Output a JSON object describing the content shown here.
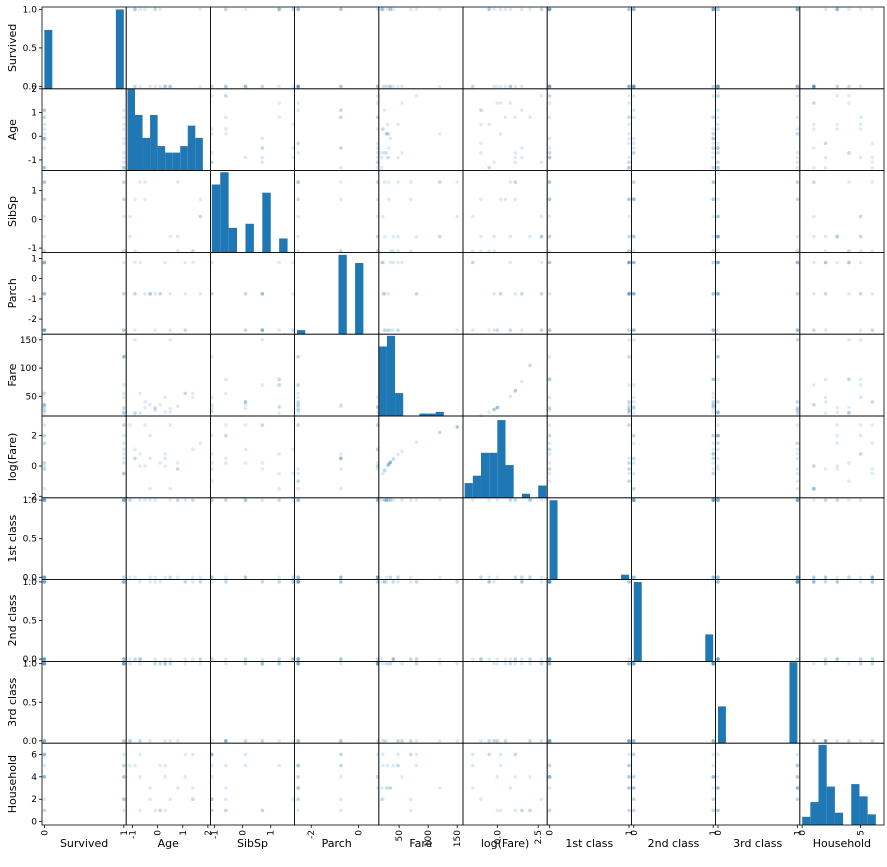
{
  "chart_data": {
    "type": "scatter",
    "variables": [
      "Survived",
      "Age",
      "SibSp",
      "Parch",
      "Fare",
      "log(Fare)",
      "1st class",
      "2nd class",
      "3rd class",
      "Household"
    ],
    "style": {
      "color": "#1f77b4",
      "point_alpha": 0.15,
      "bins": 10
    },
    "x_axis_ranges": [
      [
        -0.03,
        1.03
      ],
      [
        -1.25,
        2.1
      ],
      [
        -1.15,
        1.85
      ],
      [
        -2.7,
        0.85
      ],
      [
        15,
        160
      ],
      [
        -2.1,
        3.05
      ],
      [
        -0.03,
        1.03
      ],
      [
        -0.03,
        1.03
      ],
      [
        -0.03,
        1.03
      ],
      [
        -0.2,
        7.0
      ]
    ],
    "y_axis_ranges": [
      [
        -0.03,
        1.03
      ],
      [
        -1.45,
        2.0
      ],
      [
        -1.15,
        1.7
      ],
      [
        -2.75,
        1.3
      ],
      [
        15,
        160
      ],
      [
        -2.1,
        3.3
      ],
      [
        -0.03,
        1.03
      ],
      [
        -0.03,
        1.03
      ],
      [
        -0.03,
        1.03
      ],
      [
        -0.3,
        7.0
      ]
    ],
    "x_tick_labels": [
      [
        "0",
        "1"
      ],
      [
        "-1",
        "0",
        "1",
        "2"
      ],
      [
        "-1",
        "0",
        "1"
      ],
      [
        "-2",
        "0"
      ],
      [
        "50",
        "100",
        "150"
      ],
      [
        "0.0",
        "2.5"
      ],
      [
        "0",
        "1"
      ],
      [
        "0",
        "1"
      ],
      [
        "0",
        "1"
      ],
      [
        "0",
        "5"
      ]
    ],
    "y_tick_labels": [
      [
        "0.0",
        "0.5",
        "1.0"
      ],
      [
        "-1",
        "0",
        "1",
        "2"
      ],
      [
        "-1",
        "0",
        "1"
      ],
      [
        "-2",
        "-1",
        "0",
        "1"
      ],
      [
        "50",
        "100",
        "150"
      ],
      [
        "-2",
        "0",
        "2"
      ],
      [
        "0.0",
        "0.5",
        "1.0"
      ],
      [
        "0.0",
        "0.5",
        "1.0"
      ],
      [
        "0.0",
        "0.5",
        "1.0"
      ],
      [
        "0",
        "2",
        "4",
        "6"
      ]
    ],
    "histograms": [
      {
        "bin_edges": [
          0,
          0.1,
          0.2,
          0.3,
          0.4,
          0.5,
          0.6,
          0.7,
          0.8,
          0.9,
          1.0
        ],
        "counts": [
          0.72,
          0,
          0,
          0,
          0,
          0,
          0,
          0,
          0,
          0.97
        ]
      },
      {
        "bin_edges": [
          -1.2,
          -0.9,
          -0.6,
          -0.3,
          0.0,
          0.3,
          0.6,
          0.9,
          1.2,
          1.5,
          1.8
        ],
        "counts": [
          1.0,
          0.68,
          0.4,
          0.68,
          0.3,
          0.22,
          0.22,
          0.3,
          0.55,
          0.4
        ]
      },
      {
        "bin_edges": [
          -1.1,
          -0.8,
          -0.5,
          -0.2,
          0.1,
          0.4,
          0.7,
          1.0,
          1.3,
          1.6,
          1.9
        ],
        "counts": [
          0.83,
          0.98,
          0.3,
          0,
          0.35,
          0,
          0.73,
          0,
          0.17,
          0
        ]
      },
      {
        "bin_edges": [
          -2.6,
          -2.25,
          -1.9,
          -1.55,
          -1.2,
          -0.85,
          -0.5,
          -0.15,
          0.2,
          0.55,
          0.9
        ],
        "counts": [
          0.05,
          0,
          0,
          0,
          0,
          0.97,
          0,
          0.87,
          0,
          0
        ]
      },
      {
        "bin_edges": [
          15,
          29,
          43,
          57,
          71,
          85,
          99,
          113,
          127,
          141,
          155
        ],
        "counts": [
          0.85,
          0.98,
          0.28,
          0,
          0,
          0.03,
          0.03,
          0.05,
          0,
          0
        ]
      },
      {
        "bin_edges": [
          -2.0,
          -1.5,
          -1.0,
          -0.5,
          0.0,
          0.5,
          1.0,
          1.5,
          2.0,
          2.5,
          3.0
        ],
        "counts": [
          0.18,
          0.27,
          0.55,
          0.55,
          0.95,
          0.4,
          0,
          0.05,
          0,
          0.15
        ]
      },
      {
        "bin_edges": [
          0,
          0.1,
          0.2,
          0.3,
          0.4,
          0.5,
          0.6,
          0.7,
          0.8,
          0.9,
          1.0
        ],
        "counts": [
          0.97,
          0,
          0,
          0,
          0,
          0,
          0,
          0,
          0,
          0.06
        ]
      },
      {
        "bin_edges": [
          0,
          0.1,
          0.2,
          0.3,
          0.4,
          0.5,
          0.6,
          0.7,
          0.8,
          0.9,
          1.0
        ],
        "counts": [
          0.97,
          0,
          0,
          0,
          0,
          0,
          0,
          0,
          0,
          0.33
        ]
      },
      {
        "bin_edges": [
          0,
          0.1,
          0.2,
          0.3,
          0.4,
          0.5,
          0.6,
          0.7,
          0.8,
          0.9,
          1.0
        ],
        "counts": [
          0.45,
          0,
          0,
          0,
          0,
          0,
          0,
          0,
          0,
          0.99
        ]
      },
      {
        "bin_edges": [
          0,
          0.7,
          1.4,
          2.1,
          2.8,
          3.5,
          4.2,
          4.9,
          5.6,
          6.3,
          7.0
        ],
        "counts": [
          0.1,
          0.28,
          0.98,
          0.47,
          0.15,
          0,
          0.5,
          0.35,
          0.13,
          0
        ]
      }
    ],
    "scatter_sample_values": {
      "Survived": [
        0,
        1
      ],
      "Age": [
        -1.1,
        -0.9,
        -0.7,
        -0.5,
        -0.3,
        -0.1,
        0.1,
        0.3,
        0.5,
        0.8,
        1.1,
        1.4,
        1.7
      ],
      "SibSp": [
        -1.1,
        -0.6,
        0.1,
        0.7,
        1.3,
        1.8
      ],
      "Parch": [
        -2.55,
        -0.75,
        0.8
      ],
      "Fare": [
        20,
        22,
        25,
        28,
        30,
        32,
        35,
        40,
        48,
        55,
        70,
        80,
        120,
        150
      ],
      "log(Fare)": [
        -1.5,
        -1.0,
        -0.5,
        -0.2,
        0,
        0.2,
        0.5,
        0.8,
        1.1,
        1.5,
        2.0,
        2.7
      ],
      "1st class": [
        0,
        1
      ],
      "2nd class": [
        0,
        1
      ],
      "3rd class": [
        0,
        1
      ],
      "Household": [
        1,
        2,
        3,
        4,
        5,
        6
      ]
    }
  }
}
